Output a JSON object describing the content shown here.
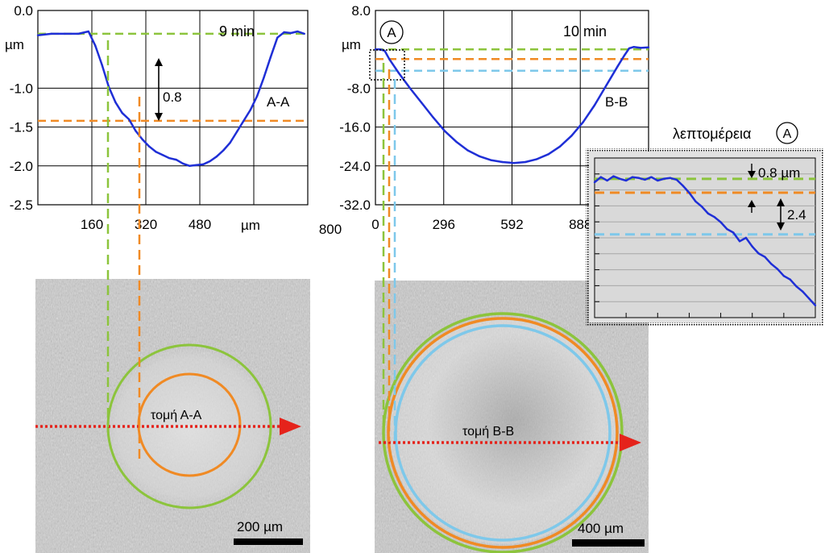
{
  "colors": {
    "profile": "#1f2fd6",
    "green": "#8cc43c",
    "orange": "#f08a24",
    "blue": "#7ec8ea",
    "red_arrow": "#e5231b",
    "detail_bg": "#d9d9d9",
    "micro_bg": "#c8c8c8"
  },
  "chart_data": [
    {
      "type": "line",
      "time_label": "9 min",
      "section_label": "A-A",
      "ylabel": "µm",
      "xlabel": "µm",
      "ylim": [
        -2.5,
        0.0
      ],
      "xlim": [
        0,
        800
      ],
      "yticks": [
        "0.0",
        "-1.0",
        "-1.5",
        "-2.0",
        "-2.5"
      ],
      "xticks": [
        "160",
        "320",
        "480",
        "800"
      ],
      "depth_annotation": "0.8",
      "green_level": -0.3,
      "orange_level": -1.42,
      "series": [
        {
          "x": [
            0,
            40,
            80,
            120,
            150,
            170,
            190,
            210,
            230,
            250,
            270,
            290,
            310,
            330,
            350,
            370,
            390,
            410,
            430,
            450,
            470,
            490,
            510,
            530,
            550,
            570,
            590,
            610,
            630,
            650,
            670,
            690,
            710,
            730,
            750,
            770,
            790
          ],
          "y": [
            -0.32,
            -0.3,
            -0.3,
            -0.3,
            -0.27,
            -0.45,
            -0.7,
            -0.98,
            -1.18,
            -1.32,
            -1.4,
            -1.55,
            -1.66,
            -1.75,
            -1.82,
            -1.86,
            -1.9,
            -1.92,
            -1.97,
            -2.0,
            -1.99,
            -1.98,
            -1.94,
            -1.88,
            -1.8,
            -1.7,
            -1.56,
            -1.42,
            -1.28,
            -1.1,
            -0.86,
            -0.6,
            -0.35,
            -0.28,
            -0.29,
            -0.27,
            -0.3
          ]
        }
      ]
    },
    {
      "type": "line",
      "time_label": "10 min",
      "section_label": "B-B",
      "ylabel": "µm",
      "ylim": [
        -32.0,
        8.0
      ],
      "xlim": [
        0,
        1184
      ],
      "yticks": [
        "8.0",
        "-8.0",
        "-16.0",
        "-24.0",
        "-32.0"
      ],
      "xticks": [
        "0",
        "296",
        "592",
        "888"
      ],
      "circle_label": "A",
      "green_level": 0.0,
      "orange_level": -2.0,
      "blue_level": -4.4,
      "series": [
        {
          "x": [
            0,
            20,
            40,
            60,
            100,
            150,
            200,
            250,
            300,
            350,
            400,
            450,
            500,
            550,
            600,
            650,
            700,
            750,
            800,
            850,
            900,
            950,
            1000,
            1050,
            1080,
            1100,
            1120,
            1150,
            1184
          ],
          "y": [
            0.0,
            0.0,
            -0.3,
            -2.0,
            -4.8,
            -8.0,
            -11.0,
            -14.0,
            -16.8,
            -19.0,
            -20.8,
            -22.0,
            -22.8,
            -23.2,
            -23.4,
            -23.2,
            -22.6,
            -21.6,
            -20.0,
            -17.8,
            -15.0,
            -11.5,
            -7.5,
            -3.5,
            -1.2,
            0.2,
            0.5,
            0.3,
            0.4
          ]
        }
      ]
    },
    {
      "type": "line",
      "title": "λεπτομέρεια",
      "circle_label": "A",
      "annotations": [
        "0.8 µm",
        "2.4"
      ],
      "green_level": 0.0,
      "orange_level": -0.8,
      "blue_level": -3.2,
      "series": [
        {
          "x": [
            0,
            2,
            4,
            6,
            8,
            10,
            12,
            14,
            16,
            18,
            20,
            22,
            24,
            26,
            28,
            30,
            32,
            34,
            36,
            38,
            40,
            42,
            44,
            46,
            48,
            50,
            52,
            54,
            56,
            58,
            60,
            62,
            64,
            66,
            68,
            70
          ],
          "y": [
            -0.2,
            0.1,
            -0.1,
            0.15,
            0.0,
            -0.1,
            0.1,
            0.05,
            -0.05,
            0.1,
            -0.1,
            0.0,
            0.05,
            -0.05,
            -0.4,
            -0.8,
            -1.3,
            -1.6,
            -2.0,
            -2.2,
            -2.5,
            -2.9,
            -3.1,
            -3.6,
            -3.4,
            -3.9,
            -4.3,
            -4.5,
            -4.9,
            -5.2,
            -5.6,
            -5.8,
            -6.2,
            -6.5,
            -6.9,
            -7.3
          ]
        }
      ]
    }
  ],
  "micrograph_a": {
    "section_label": "τομή Α-Α",
    "scale_label": "200 µm"
  },
  "micrograph_b": {
    "section_label": "τομή Β-Β",
    "scale_label": "400 µm"
  }
}
